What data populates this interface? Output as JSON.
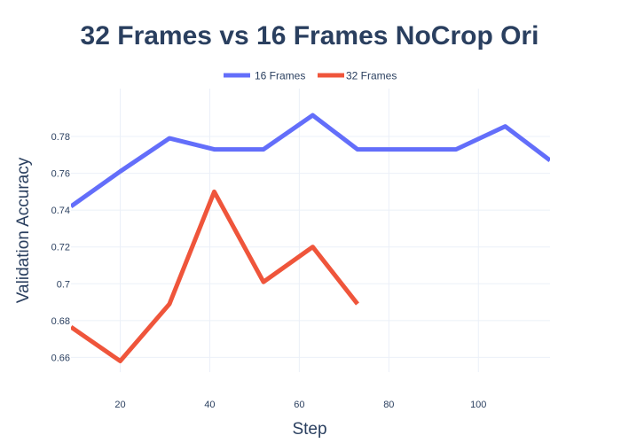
{
  "chart_data": {
    "type": "line",
    "title": "32 Frames vs 16 Frames NoCrop Ori",
    "xlabel": "Step",
    "ylabel": "Validation Accuracy",
    "xlim": [
      9,
      116
    ],
    "ylim": [
      0.652,
      0.806
    ],
    "xticks": [
      20,
      40,
      60,
      80,
      100
    ],
    "yticks": [
      0.66,
      0.68,
      0.7,
      0.72,
      0.74,
      0.76,
      0.78
    ],
    "ytick_labels": [
      "0.66",
      "0.68",
      "0.7",
      "0.72",
      "0.74",
      "0.76",
      "0.78"
    ],
    "grid": true,
    "legend_position": "top-center",
    "series": [
      {
        "name": "16 Frames",
        "color": "#636efa",
        "x": [
          9,
          20,
          31,
          41,
          52,
          63,
          73,
          84,
          95,
          106,
          116
        ],
        "y": [
          0.742,
          0.761,
          0.779,
          0.773,
          0.773,
          0.7915,
          0.773,
          0.773,
          0.773,
          0.7855,
          0.767
        ]
      },
      {
        "name": "32 Frames",
        "color": "#ef553b",
        "x": [
          9,
          20,
          31,
          41,
          52,
          63,
          73
        ],
        "y": [
          0.6765,
          0.658,
          0.689,
          0.75,
          0.701,
          0.72,
          0.689
        ]
      }
    ]
  }
}
